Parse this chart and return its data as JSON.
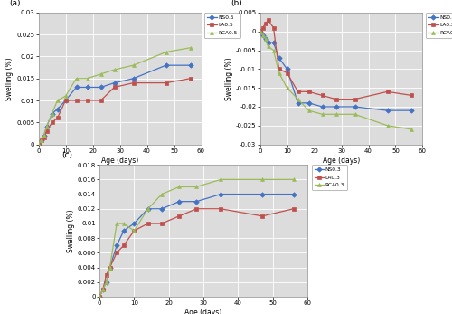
{
  "a": {
    "title": "(a)",
    "xlabel": "Age (days)",
    "ylabel": "Swelling (%)",
    "xlim": [
      0,
      60
    ],
    "ylim": [
      0,
      0.03
    ],
    "yticks": [
      0,
      0.005,
      0.01,
      0.015,
      0.02,
      0.025,
      0.03
    ],
    "xticks": [
      0,
      10,
      20,
      30,
      40,
      50,
      60
    ],
    "series": {
      "NS0.5": {
        "x": [
          0,
          1,
          2,
          3,
          5,
          7,
          10,
          14,
          18,
          23,
          28,
          35,
          47,
          56
        ],
        "y": [
          0,
          0.001,
          0.002,
          0.004,
          0.007,
          0.008,
          0.01,
          0.013,
          0.013,
          0.013,
          0.014,
          0.015,
          0.018,
          0.018
        ],
        "color": "#4472C4",
        "marker": "D"
      },
      "LA0.5": {
        "x": [
          0,
          1,
          2,
          3,
          5,
          7,
          10,
          14,
          18,
          23,
          28,
          35,
          47,
          56
        ],
        "y": [
          0,
          0.001,
          0.0015,
          0.003,
          0.005,
          0.006,
          0.01,
          0.01,
          0.01,
          0.01,
          0.013,
          0.014,
          0.014,
          0.015
        ],
        "color": "#C0504D",
        "marker": "s"
      },
      "RCA0.5": {
        "x": [
          0,
          1,
          2,
          3,
          5,
          7,
          10,
          14,
          18,
          23,
          28,
          35,
          47,
          56
        ],
        "y": [
          0,
          0.001,
          0.002,
          0.004,
          0.007,
          0.01,
          0.011,
          0.015,
          0.015,
          0.016,
          0.017,
          0.018,
          0.021,
          0.022
        ],
        "color": "#9BBB59",
        "marker": "^"
      }
    }
  },
  "b": {
    "title": "(b)",
    "xlabel": "Age (days)",
    "ylabel": "Swelling (%)",
    "xlim": [
      0,
      60
    ],
    "ylim": [
      -0.03,
      0.005
    ],
    "yticks": [
      -0.03,
      -0.025,
      -0.02,
      -0.015,
      -0.01,
      -0.005,
      0,
      0.005
    ],
    "xticks": [
      0,
      10,
      20,
      30,
      40,
      50,
      60
    ],
    "series": {
      "NS0.2": {
        "x": [
          0,
          1,
          2,
          3,
          5,
          7,
          10,
          14,
          18,
          23,
          28,
          35,
          47,
          56
        ],
        "y": [
          0,
          -0.001,
          -0.002,
          -0.003,
          -0.003,
          -0.007,
          -0.01,
          -0.019,
          -0.019,
          -0.02,
          -0.02,
          -0.02,
          -0.021,
          -0.021
        ],
        "color": "#4472C4",
        "marker": "D"
      },
      "LA0.2": {
        "x": [
          0,
          1,
          2,
          3,
          5,
          7,
          10,
          14,
          18,
          23,
          28,
          35,
          47,
          56
        ],
        "y": [
          0,
          0.001,
          0.002,
          0.003,
          0.001,
          -0.01,
          -0.011,
          -0.016,
          -0.016,
          -0.017,
          -0.018,
          -0.018,
          -0.016,
          -0.017
        ],
        "color": "#C0504D",
        "marker": "s"
      },
      "RCA0.2": {
        "x": [
          0,
          1,
          2,
          3,
          5,
          7,
          10,
          14,
          18,
          23,
          28,
          35,
          47,
          56
        ],
        "y": [
          0,
          -0.001,
          -0.002,
          -0.004,
          -0.005,
          -0.011,
          -0.015,
          -0.018,
          -0.021,
          -0.022,
          -0.022,
          -0.022,
          -0.025,
          -0.026
        ],
        "color": "#9BBB59",
        "marker": "^"
      }
    }
  },
  "c": {
    "title": "(c)",
    "xlabel": "Age (days)",
    "ylabel": "Swelling (%)",
    "xlim": [
      0,
      60
    ],
    "ylim": [
      0,
      0.018
    ],
    "yticks": [
      0,
      0.002,
      0.004,
      0.006,
      0.008,
      0.01,
      0.012,
      0.014,
      0.016,
      0.018
    ],
    "xticks": [
      0,
      10,
      20,
      30,
      40,
      50,
      60
    ],
    "series": {
      "NS0.3": {
        "x": [
          0,
          1,
          2,
          3,
          5,
          7,
          10,
          14,
          18,
          23,
          28,
          35,
          47,
          56
        ],
        "y": [
          0,
          0.001,
          0.002,
          0.004,
          0.007,
          0.009,
          0.01,
          0.012,
          0.012,
          0.013,
          0.013,
          0.014,
          0.014,
          0.014
        ],
        "color": "#4472C4",
        "marker": "D"
      },
      "LA0.3": {
        "x": [
          0,
          1,
          2,
          3,
          5,
          7,
          10,
          14,
          18,
          23,
          28,
          35,
          47,
          56
        ],
        "y": [
          0,
          0.001,
          0.003,
          0.004,
          0.006,
          0.007,
          0.009,
          0.01,
          0.01,
          0.011,
          0.012,
          0.012,
          0.011,
          0.012
        ],
        "color": "#C0504D",
        "marker": "s"
      },
      "RCA0.3": {
        "x": [
          0,
          1,
          2,
          3,
          5,
          7,
          10,
          14,
          18,
          23,
          28,
          35,
          47,
          56
        ],
        "y": [
          0,
          0.001,
          0.002,
          0.004,
          0.01,
          0.01,
          0.009,
          0.012,
          0.014,
          0.015,
          0.015,
          0.016,
          0.016,
          0.016
        ],
        "color": "#9BBB59",
        "marker": "^"
      }
    }
  },
  "bg_color": "#DCDCDC",
  "grid_color": "#FFFFFF",
  "fig_bg": "#FFFFFF"
}
